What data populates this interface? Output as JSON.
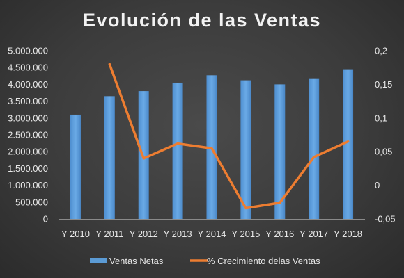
{
  "chart_data": {
    "type": "bar",
    "title": "Evolución de las Ventas",
    "categories": [
      "Y 2010",
      "Y 2011",
      "Y 2012",
      "Y 2013",
      "Y 2014",
      "Y 2015",
      "Y 2016",
      "Y 2017",
      "Y 2018"
    ],
    "series": [
      {
        "name": "Ventas Netas",
        "type": "bar",
        "axis": "left",
        "color": "#5b9bd5",
        "values": [
          3100000,
          3650000,
          3800000,
          4050000,
          4270000,
          4120000,
          4000000,
          4180000,
          4450000
        ]
      },
      {
        "name": "% Crecimiento delas Ventas",
        "type": "line",
        "axis": "right",
        "color": "#ed7d31",
        "values": [
          null,
          0.18,
          0.04,
          0.062,
          0.055,
          -0.034,
          -0.026,
          0.042,
          0.065
        ]
      }
    ],
    "y_left": {
      "min": 0,
      "max": 5000000,
      "ticks": [
        "0",
        "500.000",
        "1.000.000",
        "1.500.000",
        "2.000.000",
        "2.500.000",
        "3.000.000",
        "3.500.000",
        "4.000.000",
        "4.500.000",
        "5.000.000"
      ]
    },
    "y_right": {
      "min": -0.05,
      "max": 0.2,
      "ticks": [
        "-0,05",
        "0",
        "0,05",
        "0,1",
        "0,15",
        "0,2"
      ]
    },
    "grid": false,
    "legend_position": "bottom"
  }
}
